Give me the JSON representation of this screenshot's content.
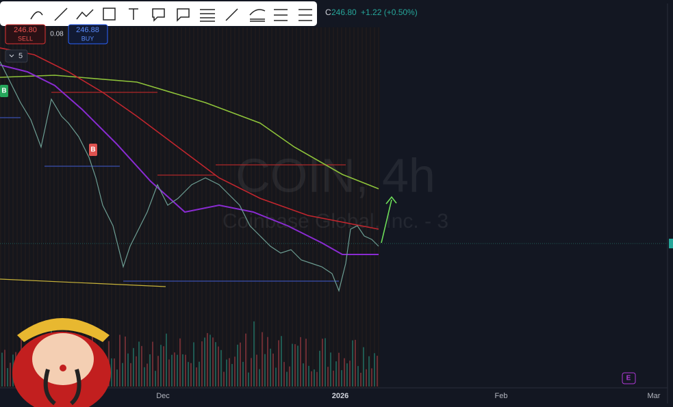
{
  "header": {
    "close_label": "C",
    "close": "246.80",
    "change": "+1.22 (+0.50%)"
  },
  "trade": {
    "sell_price": "246.80",
    "sell_label": "SELL",
    "spread": "0.08",
    "buy_price": "246.88",
    "buy_label": "BUY"
  },
  "indicator_toggle": "5",
  "markers": [
    "B",
    "B"
  ],
  "watermark": {
    "symbol": "COIN, 4h",
    "name": "Coinbase Global, Inc. - 3"
  },
  "x_axis": {
    "labels": [
      "Dec",
      "2026",
      "Feb",
      "Mar"
    ]
  },
  "earnings_badge": "E"
}
